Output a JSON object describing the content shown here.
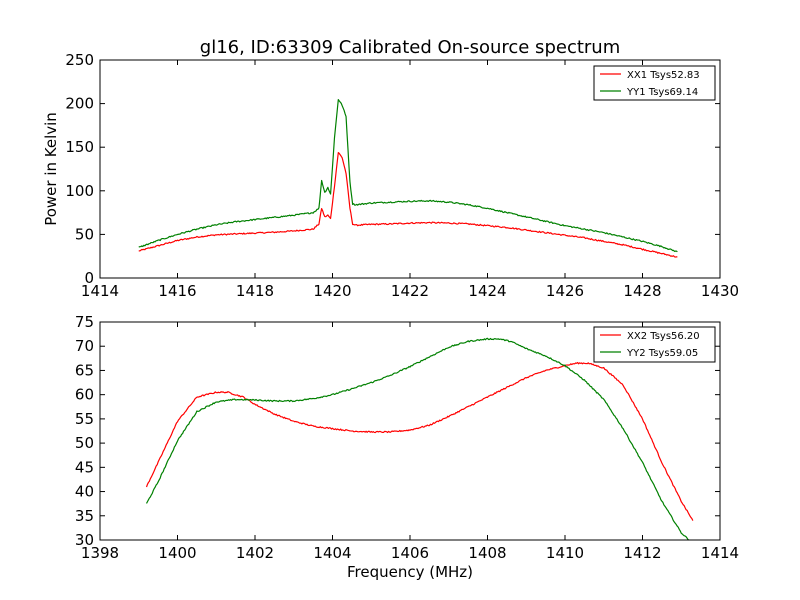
{
  "chart_data": [
    {
      "type": "line",
      "title": "gl16, ID:63309 Calibrated On-source spectrum",
      "xlabel": "",
      "ylabel": "Power in Kelvin",
      "xlim": [
        1414,
        1430
      ],
      "ylim": [
        0,
        250
      ],
      "xticks": [
        "1414",
        "1416",
        "1418",
        "1420",
        "1422",
        "1424",
        "1426",
        "1428",
        "1430"
      ],
      "yticks": [
        "0",
        "50",
        "100",
        "150",
        "200",
        "250"
      ],
      "grid": false,
      "legend_position": "top-right",
      "series": [
        {
          "name": "XX1 Tsys52.83",
          "color": "#ff0000",
          "x": [
            1415.0,
            1415.5,
            1416.0,
            1416.5,
            1417.0,
            1417.5,
            1418.0,
            1418.5,
            1419.0,
            1419.5,
            1419.65,
            1419.72,
            1419.8,
            1419.88,
            1419.95,
            1420.05,
            1420.15,
            1420.25,
            1420.35,
            1420.45,
            1420.52,
            1420.6,
            1420.8,
            1421.0,
            1421.5,
            1422.0,
            1422.5,
            1423.0,
            1423.5,
            1424.0,
            1424.5,
            1425.0,
            1425.5,
            1426.0,
            1426.5,
            1427.0,
            1427.5,
            1428.0,
            1428.5,
            1428.9
          ],
          "values": [
            31,
            37,
            43,
            47,
            49.5,
            50.5,
            51.5,
            52.5,
            54,
            56,
            62,
            80,
            70,
            72,
            68,
            105,
            144,
            138,
            120,
            80,
            62,
            60.5,
            61,
            61.5,
            62,
            63,
            63.5,
            63,
            62,
            60,
            58,
            55,
            52,
            49,
            46,
            42,
            38,
            33,
            28,
            24
          ]
        },
        {
          "name": "YY1 Tsys69.14",
          "color": "#008000",
          "x": [
            1415.0,
            1415.5,
            1416.0,
            1416.5,
            1417.0,
            1417.5,
            1418.0,
            1418.5,
            1419.0,
            1419.5,
            1419.65,
            1419.72,
            1419.8,
            1419.88,
            1419.95,
            1420.05,
            1420.15,
            1420.25,
            1420.35,
            1420.45,
            1420.52,
            1420.6,
            1420.8,
            1421.0,
            1421.5,
            1422.0,
            1422.5,
            1423.0,
            1423.5,
            1424.0,
            1424.5,
            1425.0,
            1425.5,
            1426.0,
            1426.5,
            1427.0,
            1427.5,
            1428.0,
            1428.5,
            1428.9
          ],
          "values": [
            35,
            43,
            50,
            56,
            61,
            64.5,
            67,
            69.5,
            72,
            75,
            80,
            112,
            98,
            104,
            96,
            160,
            205,
            198,
            185,
            110,
            85,
            84,
            85,
            86,
            87,
            88,
            88.5,
            87,
            84,
            80,
            75,
            70,
            65,
            60,
            56,
            52,
            47,
            42,
            36,
            30
          ]
        }
      ]
    },
    {
      "type": "line",
      "title": "",
      "xlabel": "Frequency (MHz)",
      "ylabel": "",
      "xlim": [
        1398,
        1414
      ],
      "ylim": [
        30,
        75
      ],
      "xticks": [
        "1398",
        "1400",
        "1402",
        "1404",
        "1406",
        "1408",
        "1410",
        "1412",
        "1414"
      ],
      "yticks": [
        "30",
        "35",
        "40",
        "45",
        "50",
        "55",
        "60",
        "65",
        "70",
        "75"
      ],
      "grid": false,
      "legend_position": "top-right",
      "series": [
        {
          "name": "XX2 Tsys56.20",
          "color": "#ff0000",
          "x": [
            1399.2,
            1399.5,
            1400.0,
            1400.5,
            1401.0,
            1401.3,
            1401.7,
            1402.0,
            1402.5,
            1403.0,
            1403.5,
            1404.0,
            1404.5,
            1405.0,
            1405.5,
            1406.0,
            1406.5,
            1407.0,
            1407.5,
            1408.0,
            1408.5,
            1409.0,
            1409.5,
            1410.0,
            1410.3,
            1410.6,
            1411.0,
            1411.5,
            1412.0,
            1412.5,
            1413.0,
            1413.3
          ],
          "values": [
            41,
            46,
            54.5,
            59.5,
            60.5,
            60.5,
            59.5,
            58,
            56,
            54.5,
            53.5,
            53,
            52.5,
            52.3,
            52.3,
            52.7,
            53.7,
            55.5,
            57.5,
            59.5,
            61.5,
            63.5,
            65,
            66,
            66.5,
            66.5,
            65.5,
            62,
            55,
            46,
            38,
            34
          ]
        },
        {
          "name": "YY2 Tsys59.05",
          "color": "#008000",
          "x": [
            1399.2,
            1399.5,
            1400.0,
            1400.5,
            1401.0,
            1401.5,
            1402.0,
            1402.5,
            1403.0,
            1403.5,
            1404.0,
            1404.5,
            1405.0,
            1405.5,
            1406.0,
            1406.5,
            1407.0,
            1407.5,
            1408.0,
            1408.3,
            1408.6,
            1409.0,
            1409.5,
            1410.0,
            1410.5,
            1411.0,
            1411.5,
            1412.0,
            1412.5,
            1413.0,
            1413.2
          ],
          "values": [
            37.5,
            42,
            50.5,
            56.5,
            58.5,
            59,
            58.9,
            58.7,
            58.7,
            59.2,
            60,
            61.2,
            62.5,
            64,
            65.8,
            67.8,
            69.8,
            71,
            71.5,
            71.5,
            71,
            69.5,
            68,
            66,
            63,
            59,
            53,
            46,
            38,
            31.5,
            30
          ]
        }
      ]
    }
  ]
}
